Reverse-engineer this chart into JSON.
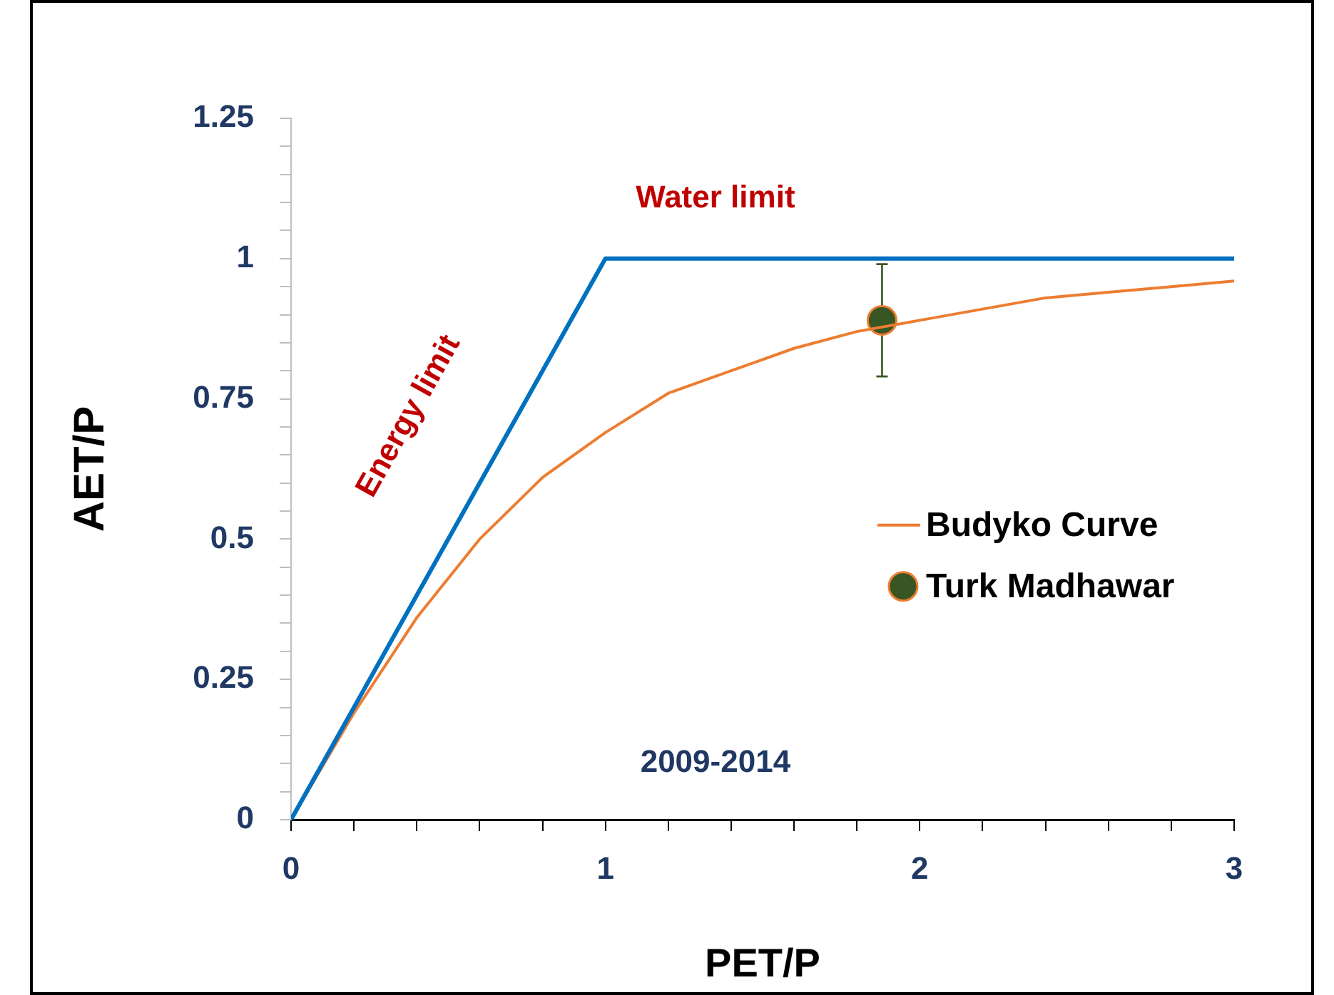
{
  "chart_data": {
    "type": "line",
    "xlabel": "PET/P",
    "ylabel": "AET/P",
    "xlim": [
      0,
      3
    ],
    "ylim": [
      0,
      1.25
    ],
    "xticks": [
      0,
      {
        "value": 0.2,
        "label": null
      },
      {
        "value": 0.4,
        "label": null
      },
      {
        "value": 0.6,
        "label": null
      },
      {
        "value": 0.8,
        "label": null
      },
      1,
      {
        "value": 1.2,
        "label": null
      },
      {
        "value": 1.4,
        "label": null
      },
      {
        "value": 1.6,
        "label": null
      },
      {
        "value": 1.8,
        "label": null
      },
      2,
      {
        "value": 2.2,
        "label": null
      },
      {
        "value": 2.4,
        "label": null
      },
      {
        "value": 2.6,
        "label": null
      },
      {
        "value": 2.8,
        "label": null
      },
      3
    ],
    "yticks": [
      0,
      {
        "value": 0.05,
        "label": null
      },
      {
        "value": 0.1,
        "label": null
      },
      {
        "value": 0.15,
        "label": null
      },
      {
        "value": 0.2,
        "label": null
      },
      0.25,
      {
        "value": 0.3,
        "label": null
      },
      {
        "value": 0.35,
        "label": null
      },
      {
        "value": 0.4,
        "label": null
      },
      {
        "value": 0.45,
        "label": null
      },
      0.5,
      {
        "value": 0.55,
        "label": null
      },
      {
        "value": 0.6,
        "label": null
      },
      {
        "value": 0.65,
        "label": null
      },
      {
        "value": 0.7,
        "label": null
      },
      0.75,
      {
        "value": 0.8,
        "label": null
      },
      {
        "value": 0.85,
        "label": null
      },
      {
        "value": 0.9,
        "label": null
      },
      {
        "value": 0.95,
        "label": null
      },
      1,
      {
        "value": 1.05,
        "label": null
      },
      {
        "value": 1.1,
        "label": null
      },
      {
        "value": 1.15,
        "label": null
      },
      {
        "value": 1.2,
        "label": null
      },
      1.25
    ],
    "grid": false,
    "legend": "right",
    "series": [
      {
        "type": "line",
        "color": "#0070c0",
        "x": [
          0,
          1,
          3
        ],
        "values": [
          0,
          1,
          1
        ],
        "marker": "none"
      },
      {
        "type": "line",
        "name": "Budyko Curve",
        "color": "#ed7d31",
        "x": [
          0,
          0.2,
          0.4,
          0.6,
          0.8,
          1,
          1.2,
          1.4,
          1.6,
          1.8,
          2,
          2.2,
          2.4,
          2.6,
          2.8,
          3
        ],
        "values": [
          0,
          0.19,
          0.36,
          0.5,
          0.61,
          0.69,
          0.76,
          0.8,
          0.84,
          0.87,
          0.89,
          0.91,
          0.93,
          0.94,
          0.95,
          0.96
        ],
        "marker": "none"
      },
      {
        "type": "scatter",
        "name": "Turk Madhawar",
        "color": "#375623",
        "x": [
          1.88
        ],
        "values": [
          0.89
        ],
        "errors": [
          0.1
        ],
        "marker": "circle"
      }
    ],
    "annotations": [
      "Water limit",
      "Energy limit",
      "2009-2014"
    ]
  }
}
